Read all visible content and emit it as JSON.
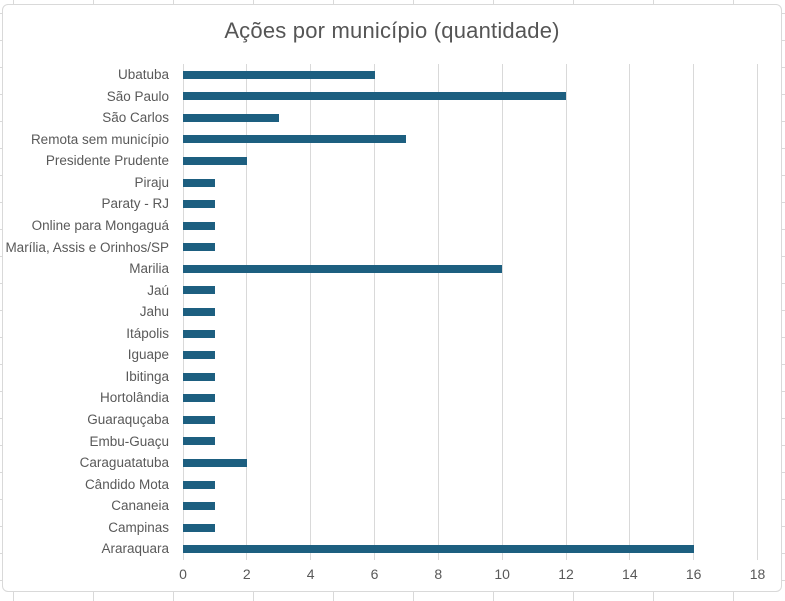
{
  "chart_data": {
    "type": "bar",
    "orientation": "horizontal",
    "title": "Ações por município (quantidade)",
    "categories": [
      "Ubatuba",
      "São Paulo",
      "São Carlos",
      "Remota sem município",
      "Presidente Prudente",
      "Piraju",
      "Paraty - RJ",
      "Online para Mongaguá",
      "Marília, Assis e Orinhos/SP",
      "Marilia",
      "Jaú",
      "Jahu",
      "Itápolis",
      "Iguape",
      "Ibitinga",
      "Hortolândia",
      "Guaraquçaba",
      "Embu-Guaçu",
      "Caraguatatuba",
      "Cândido Mota",
      "Cananeia",
      "Campinas",
      "Araraquara"
    ],
    "values": [
      6,
      12,
      3,
      7,
      2,
      1,
      1,
      1,
      1,
      10,
      1,
      1,
      1,
      1,
      1,
      1,
      1,
      1,
      2,
      1,
      1,
      1,
      16
    ],
    "xticks": [
      0,
      2,
      4,
      6,
      8,
      10,
      12,
      14,
      16,
      18
    ],
    "xlim": [
      0,
      18
    ],
    "xlabel": "",
    "ylabel": "",
    "grid": "vertical",
    "legend": "none",
    "colors": {
      "bar": "#1d5f80",
      "gridline": "#d9d9d9",
      "frame": "#d9d9d9",
      "axis_text": "#595959",
      "title_text": "#555555"
    }
  }
}
